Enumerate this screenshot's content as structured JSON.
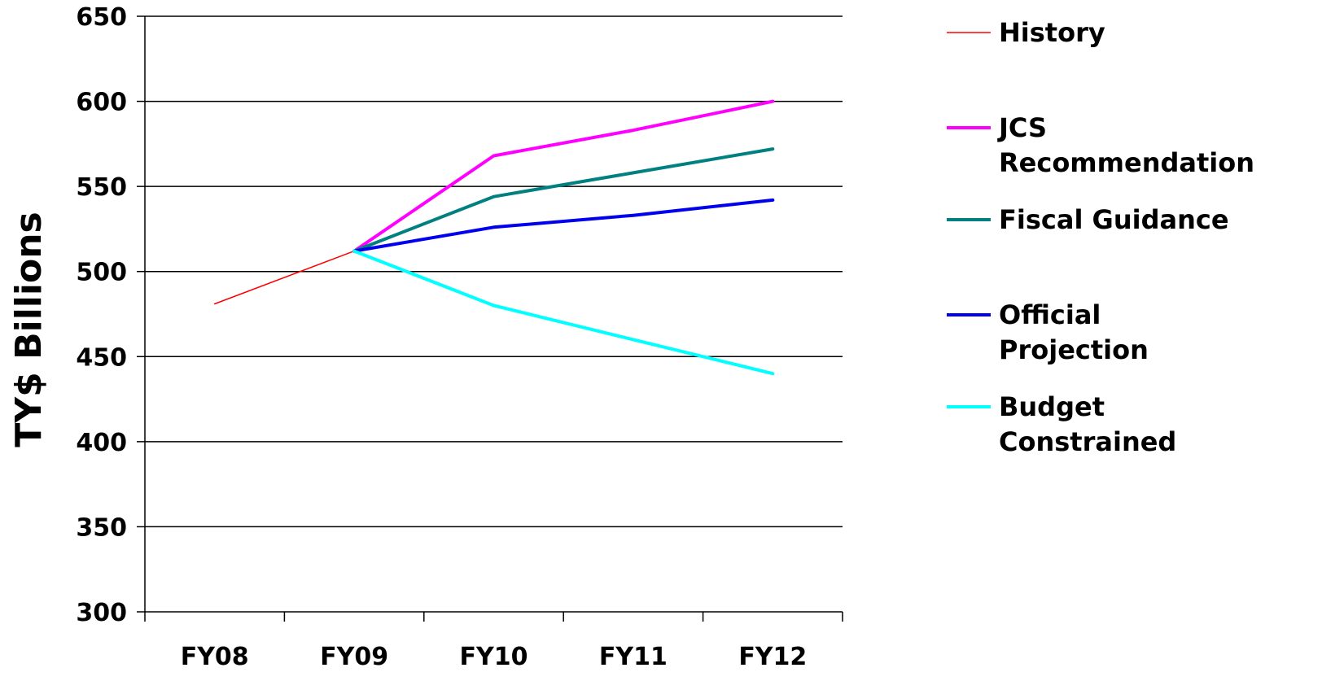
{
  "chart_data": {
    "type": "line",
    "title": "",
    "xlabel": "",
    "ylabel": "TY$ Billions",
    "ylim": [
      300,
      650
    ],
    "yticks": [
      "300",
      "350",
      "400",
      "450",
      "500",
      "550",
      "600",
      "650"
    ],
    "categories": [
      "FY08",
      "FY09",
      "FY10",
      "FY11",
      "FY12"
    ],
    "grid": "horizontal",
    "legend_position": "right",
    "series": [
      {
        "name": "History",
        "color": "#ff0000",
        "values": [
          481,
          512,
          null,
          null,
          null
        ]
      },
      {
        "name": "JCS Recommendation",
        "color": "#ff00ff",
        "values": [
          null,
          512,
          568,
          583,
          600
        ]
      },
      {
        "name": "Fiscal Guidance",
        "color": "#008080",
        "values": [
          null,
          512,
          544,
          558,
          572
        ]
      },
      {
        "name": "Official Projection",
        "color": "#0000ee",
        "values": [
          null,
          512,
          526,
          533,
          542
        ]
      },
      {
        "name": "Budget Constrained",
        "color": "#00ffff",
        "values": [
          null,
          512,
          480,
          460,
          440
        ]
      }
    ]
  }
}
